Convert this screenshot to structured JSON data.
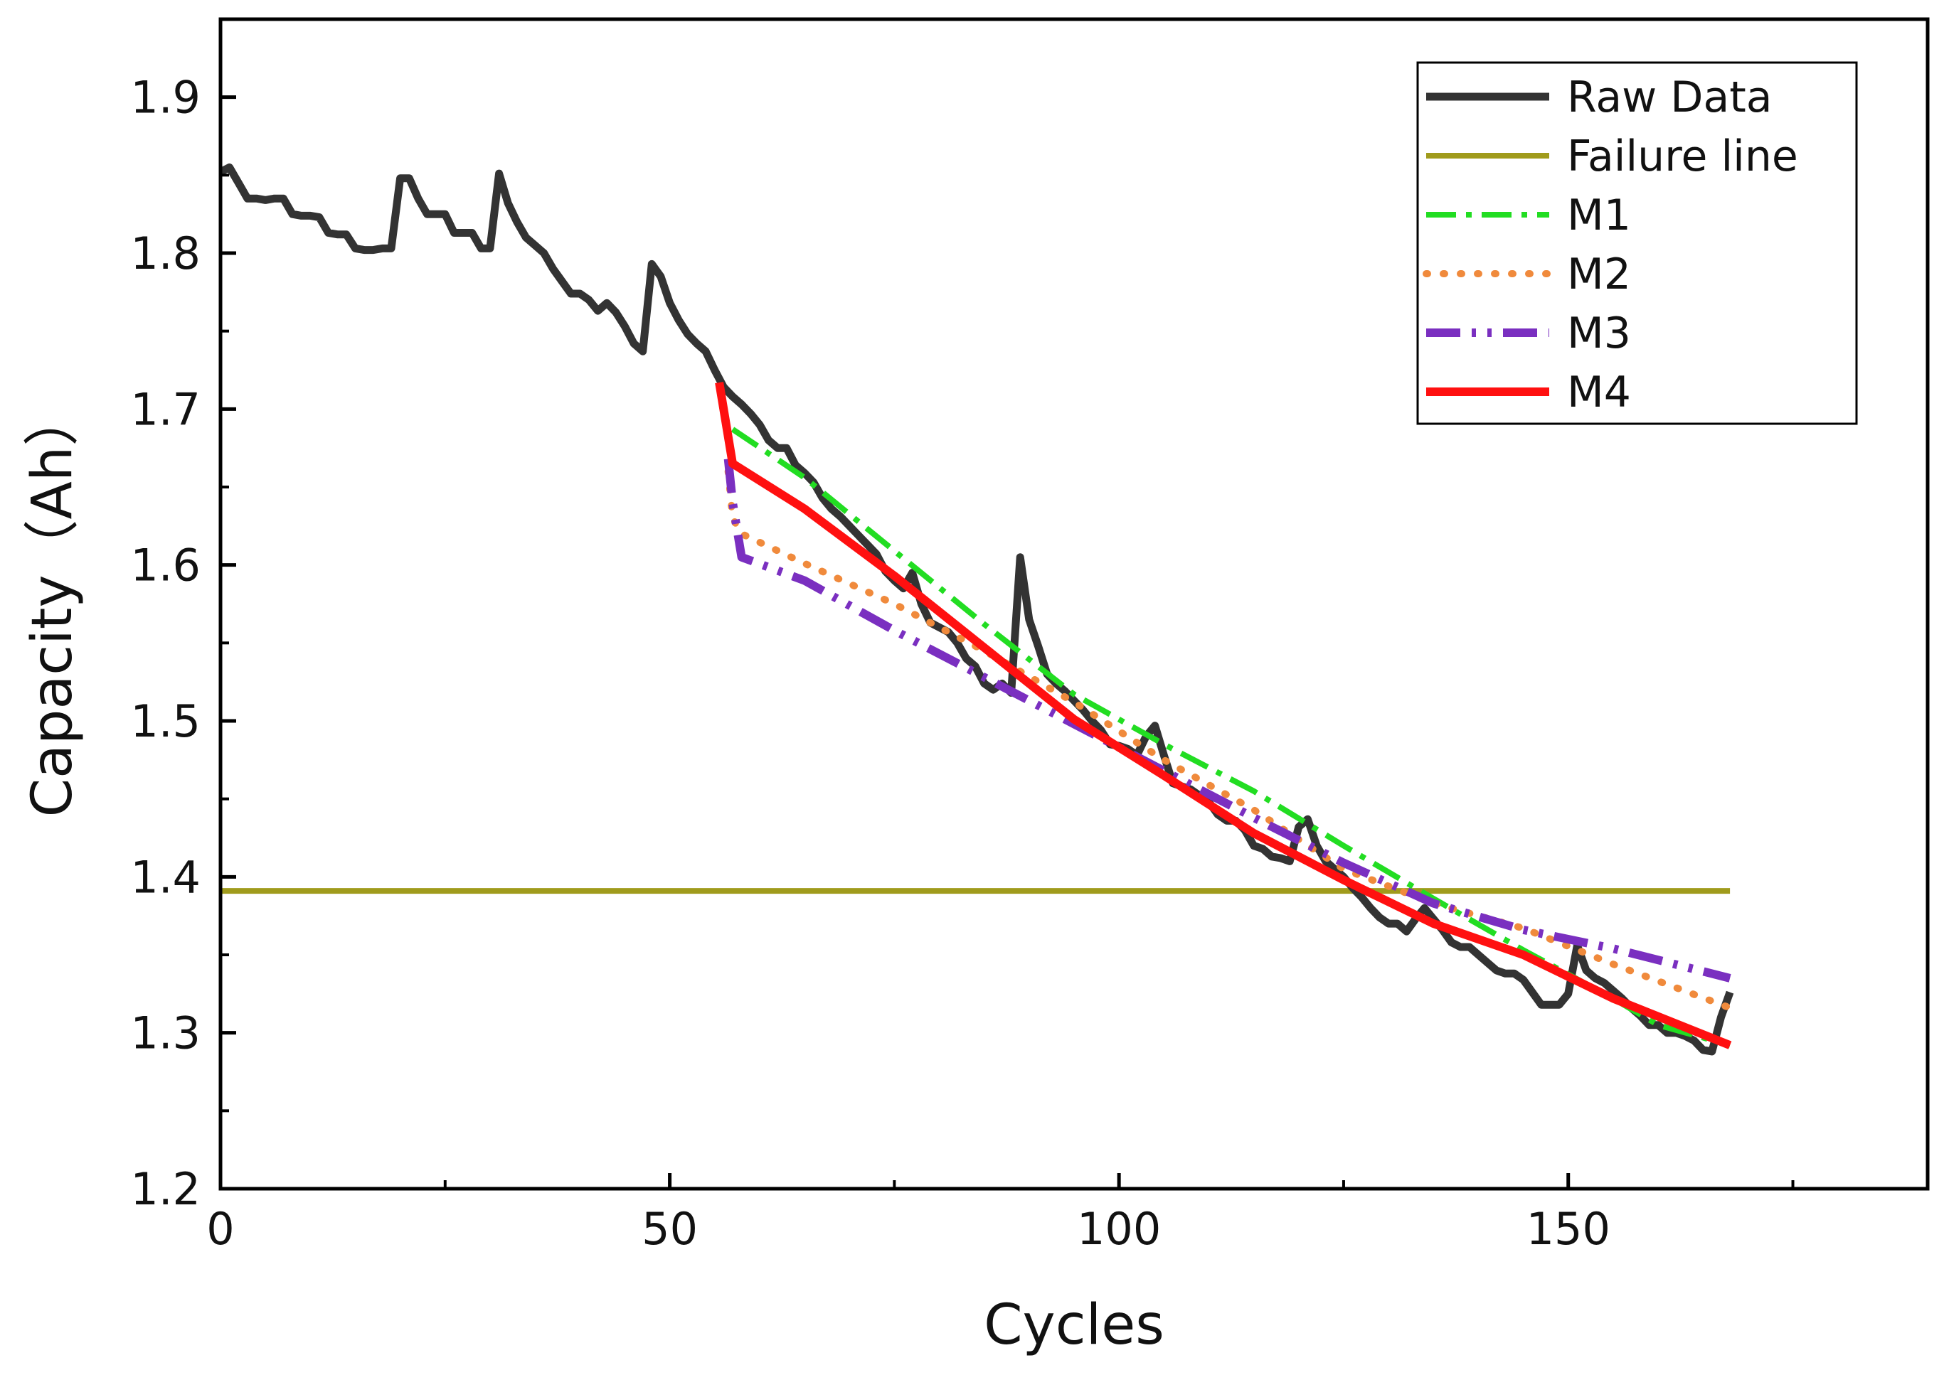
{
  "chart_data": {
    "type": "line",
    "title": "",
    "xlabel": "Cycles",
    "ylabel": "Capacity（Ah）",
    "xlim": [
      0,
      190
    ],
    "ylim": [
      1.2,
      1.95
    ],
    "xticks": [
      0,
      50,
      100,
      150
    ],
    "yticks": [
      1.2,
      1.3,
      1.4,
      1.5,
      1.6,
      1.7,
      1.8,
      1.9
    ],
    "x_tick_labels": [
      "0",
      "50",
      "100",
      "150"
    ],
    "y_tick_labels": [
      "1.2",
      "1.3",
      "1.4",
      "1.5",
      "1.6",
      "1.7",
      "1.8",
      "1.9"
    ],
    "grid": false,
    "legend_position": "top-right",
    "series": [
      {
        "name": "Raw Data",
        "color": "#333333",
        "style": "solid",
        "x": [
          0,
          1,
          2,
          3,
          4,
          5,
          6,
          7,
          8,
          9,
          10,
          11,
          12,
          13,
          14,
          15,
          16,
          17,
          18,
          19,
          20,
          21,
          22,
          23,
          24,
          25,
          26,
          27,
          28,
          29,
          30,
          31,
          32,
          33,
          34,
          35,
          36,
          37,
          38,
          39,
          40,
          41,
          42,
          43,
          44,
          45,
          46,
          47,
          48,
          49,
          50,
          51,
          52,
          53,
          54,
          55,
          56,
          57,
          58,
          59,
          60,
          61,
          62,
          63,
          64,
          65,
          66,
          67,
          68,
          69,
          70,
          71,
          72,
          73,
          74,
          75,
          76,
          77,
          78,
          79,
          80,
          81,
          82,
          83,
          84,
          85,
          86,
          87,
          88,
          89,
          90,
          91,
          92,
          93,
          94,
          95,
          96,
          97,
          98,
          99,
          100,
          101,
          102,
          103,
          104,
          105,
          106,
          107,
          108,
          109,
          110,
          111,
          112,
          113,
          114,
          115,
          116,
          117,
          118,
          119,
          120,
          121,
          122,
          123,
          124,
          125,
          126,
          127,
          128,
          129,
          130,
          131,
          132,
          133,
          134,
          135,
          136,
          137,
          138,
          139,
          140,
          141,
          142,
          143,
          144,
          145,
          146,
          147,
          148,
          149,
          150,
          151,
          152,
          153,
          154,
          155,
          156,
          157,
          158,
          159,
          160,
          161,
          162,
          163,
          164,
          165,
          166,
          167,
          168
        ],
        "y": [
          1.852,
          1.855,
          1.845,
          1.835,
          1.835,
          1.834,
          1.835,
          1.835,
          1.825,
          1.824,
          1.824,
          1.823,
          1.813,
          1.812,
          1.812,
          1.803,
          1.802,
          1.802,
          1.803,
          1.803,
          1.848,
          1.848,
          1.835,
          1.825,
          1.825,
          1.825,
          1.813,
          1.813,
          1.813,
          1.803,
          1.803,
          1.851,
          1.832,
          1.82,
          1.81,
          1.805,
          1.8,
          1.79,
          1.782,
          1.774,
          1.774,
          1.77,
          1.763,
          1.768,
          1.762,
          1.753,
          1.742,
          1.737,
          1.793,
          1.785,
          1.768,
          1.757,
          1.748,
          1.742,
          1.737,
          1.725,
          1.714,
          1.708,
          1.703,
          1.697,
          1.69,
          1.68,
          1.675,
          1.675,
          1.664,
          1.659,
          1.653,
          1.643,
          1.636,
          1.631,
          1.625,
          1.619,
          1.613,
          1.607,
          1.596,
          1.59,
          1.585,
          1.595,
          1.575,
          1.563,
          1.56,
          1.557,
          1.55,
          1.54,
          1.535,
          1.524,
          1.52,
          1.524,
          1.518,
          1.605,
          1.565,
          1.548,
          1.53,
          1.524,
          1.519,
          1.513,
          1.507,
          1.5,
          1.494,
          1.485,
          1.484,
          1.482,
          1.478,
          1.49,
          1.497,
          1.478,
          1.46,
          1.458,
          1.456,
          1.452,
          1.448,
          1.44,
          1.436,
          1.436,
          1.43,
          1.42,
          1.418,
          1.413,
          1.412,
          1.41,
          1.432,
          1.437,
          1.42,
          1.41,
          1.405,
          1.4,
          1.393,
          1.387,
          1.38,
          1.374,
          1.37,
          1.37,
          1.365,
          1.373,
          1.38,
          1.373,
          1.366,
          1.358,
          1.355,
          1.355,
          1.35,
          1.345,
          1.34,
          1.338,
          1.338,
          1.334,
          1.326,
          1.318,
          1.318,
          1.318,
          1.325,
          1.356,
          1.34,
          1.335,
          1.332,
          1.327,
          1.322,
          1.316,
          1.311,
          1.305,
          1.305,
          1.3,
          1.3,
          1.298,
          1.295,
          1.289,
          1.288,
          1.31,
          1.326
        ]
      },
      {
        "name": "Failure line",
        "color": "#a09b1c",
        "style": "solid",
        "x": [
          0,
          168
        ],
        "y": [
          1.391,
          1.391
        ]
      },
      {
        "name": "M1",
        "color": "#22dd22",
        "style": "dashdot",
        "x": [
          57,
          65,
          75,
          85,
          95,
          105,
          115,
          125,
          135,
          145,
          155,
          160,
          168
        ],
        "y": [
          1.687,
          1.656,
          1.609,
          1.562,
          1.517,
          1.485,
          1.455,
          1.42,
          1.386,
          1.353,
          1.322,
          1.305,
          1.292
        ]
      },
      {
        "name": "M2",
        "color": "#f08a3c",
        "style": "dotted",
        "x": [
          56.5,
          57,
          58,
          65,
          75,
          85,
          95,
          105,
          115,
          125,
          135,
          145,
          155,
          168
        ],
        "y": [
          1.66,
          1.63,
          1.62,
          1.601,
          1.575,
          1.545,
          1.512,
          1.475,
          1.443,
          1.405,
          1.383,
          1.367,
          1.344,
          1.316
        ]
      },
      {
        "name": "M3",
        "color": "#7a2fc0",
        "style": "dashdotdot",
        "x": [
          56.5,
          57,
          58,
          65,
          75,
          85,
          95,
          105,
          115,
          125,
          135,
          145,
          155,
          168
        ],
        "y": [
          1.668,
          1.64,
          1.605,
          1.59,
          1.558,
          1.528,
          1.498,
          1.468,
          1.438,
          1.409,
          1.383,
          1.366,
          1.354,
          1.335
        ]
      },
      {
        "name": "M4",
        "color": "#ff1010",
        "style": "solid",
        "x": [
          55.5,
          57,
          65,
          75,
          85,
          95,
          105,
          115,
          125,
          135,
          145,
          155,
          168
        ],
        "y": [
          1.717,
          1.665,
          1.636,
          1.593,
          1.547,
          1.501,
          1.465,
          1.428,
          1.398,
          1.37,
          1.35,
          1.322,
          1.292
        ]
      }
    ]
  }
}
